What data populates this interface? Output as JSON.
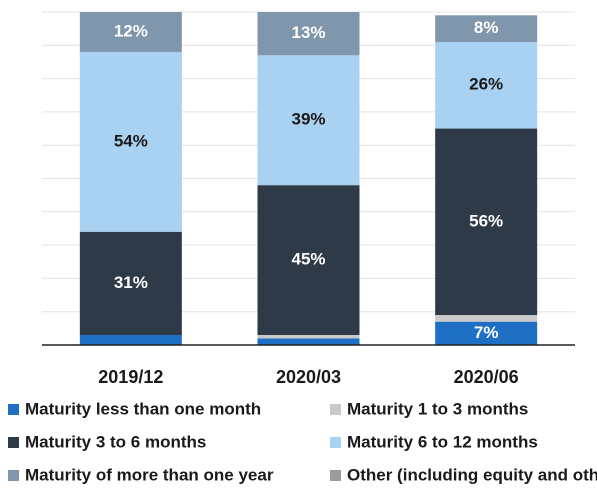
{
  "chart_data": {
    "type": "stacked_bar",
    "categories": [
      "2019/12",
      "2020/03",
      "2020/06"
    ],
    "ylim": [
      0,
      100
    ],
    "yticks": [
      0,
      10,
      20,
      30,
      40,
      50,
      60,
      70,
      80,
      90,
      100
    ],
    "grid": true,
    "series": [
      {
        "name": "Maturity less than one month",
        "color": "#1f6fc5",
        "values": [
          3,
          2,
          7
        ],
        "value_labels": [
          null,
          null,
          "7%"
        ]
      },
      {
        "name": "Maturity 1 to 3 months",
        "color": "#c9c9c9",
        "values": [
          0,
          1,
          2
        ],
        "value_labels": [
          null,
          null,
          null
        ]
      },
      {
        "name": "Maturity 3 to 6 months",
        "color": "#2e3a47",
        "values": [
          31,
          45,
          56
        ],
        "value_labels": [
          "31%",
          "45%",
          "56%"
        ]
      },
      {
        "name": "Maturity 6 to 12 months",
        "color": "#a9d1f1",
        "values": [
          54,
          39,
          26
        ],
        "value_labels": [
          "54%",
          "39%",
          "26%"
        ]
      },
      {
        "name": "Maturity of more than one year",
        "color": "#7f96ad",
        "values": [
          12,
          13,
          8
        ],
        "value_labels": [
          "12%",
          "13%",
          "8%"
        ]
      },
      {
        "name": "Other (including equity and other)",
        "color": "#9b9b9b",
        "values": [
          0,
          0,
          0
        ],
        "value_labels": [
          null,
          null,
          null
        ]
      }
    ],
    "legend": "bottom"
  }
}
